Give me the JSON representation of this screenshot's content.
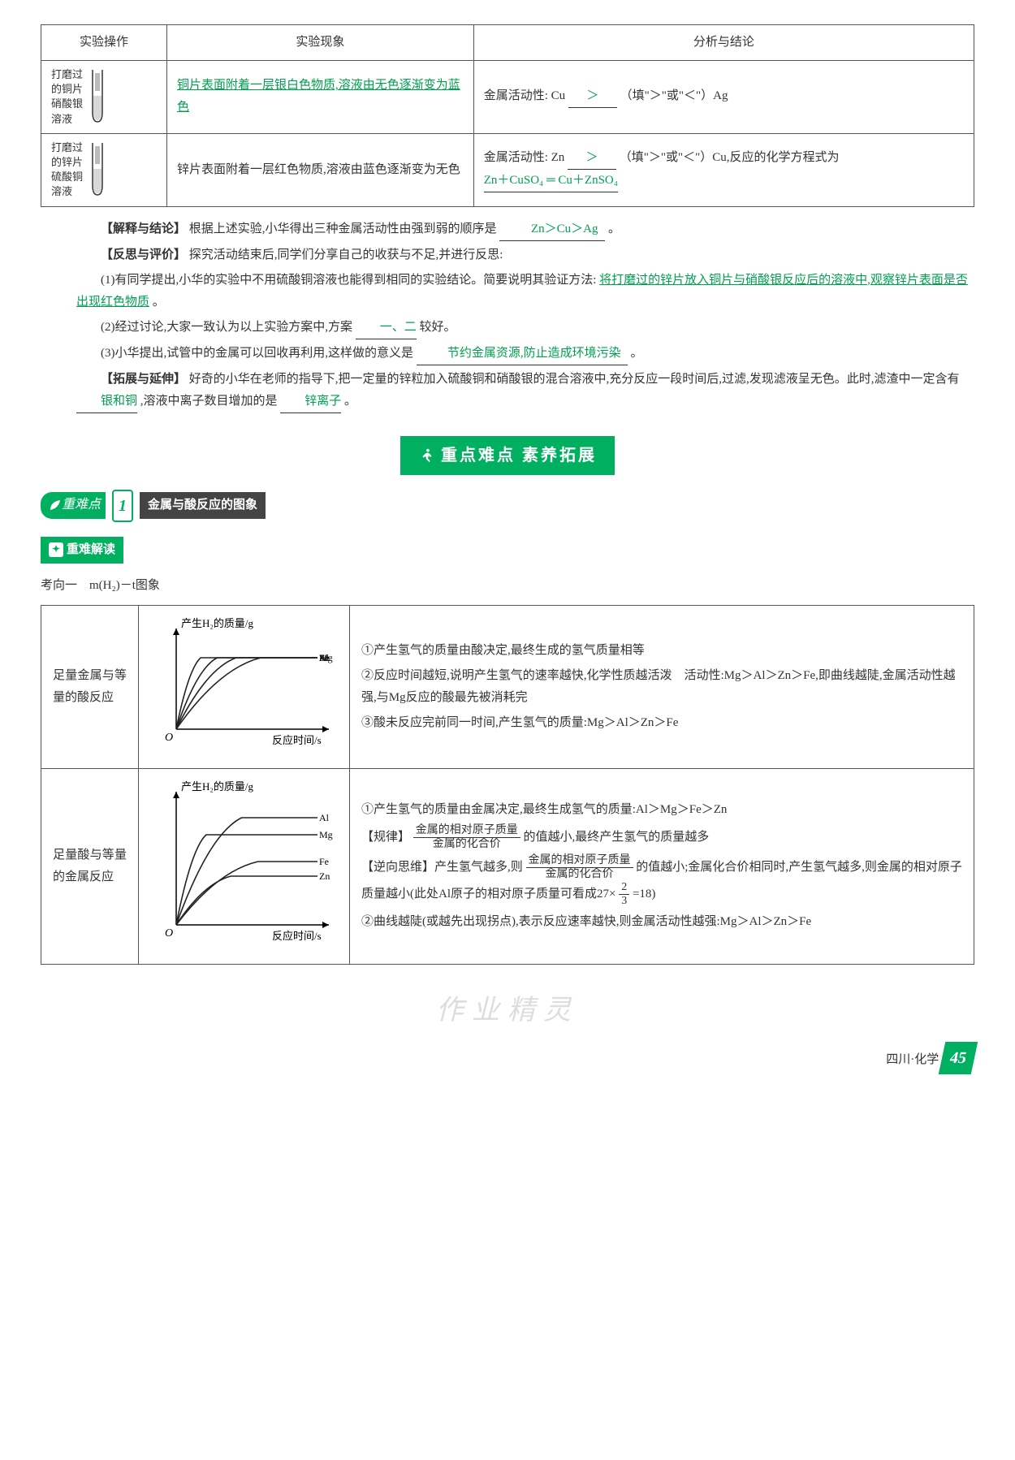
{
  "experiment_table": {
    "headers": [
      "实验操作",
      "实验现象",
      "分析与结论"
    ],
    "rows": [
      {
        "label_lines": [
          "打磨过",
          "的铜片",
          "硝酸银",
          "溶液"
        ],
        "phenomenon_answer": "铜片表面附着一层银白色物质,溶液由无色逐渐变为蓝色",
        "analysis_prefix": "金属活动性: Cu",
        "analysis_blank": "＞",
        "analysis_suffix": "（填\"＞\"或\"＜\"）Ag"
      },
      {
        "label_lines": [
          "打磨过",
          "的锌片",
          "硫酸铜",
          "溶液"
        ],
        "phenomenon": "锌片表面附着一层红色物质,溶液由蓝色逐渐变为无色",
        "analysis_prefix": "金属活动性: Zn",
        "analysis_blank": "＞",
        "analysis_mid": "（填\"＞\"或\"＜\"）Cu,反应的化学方程式为",
        "analysis_blank2": "Zn＋CuSO₄ ═ Cu＋ZnSO₄"
      }
    ]
  },
  "sections": {
    "explain_label": "【解释与结论】",
    "explain_text_pre": "根据上述实验,小华得出三种金属活动性由强到弱的顺序是",
    "explain_blank": "Zn＞Cu＞Ag",
    "explain_text_post": "。",
    "reflect_label": "【反思与评价】",
    "reflect_intro": "探究活动结束后,同学们分享自己的收获与不足,并进行反思:",
    "q1_pre": "(1)有同学提出,小华的实验中不用硫酸铜溶液也能得到相同的实验结论。简要说明其验证方法:",
    "q1_blank": "将打磨过的锌片放入铜片与硝酸银反应后的溶液中,观察锌片表面是否出现红色物质",
    "q1_post": "。",
    "q2_pre": "(2)经过讨论,大家一致认为以上实验方案中,方案",
    "q2_blank": "一、二",
    "q2_post": "较好。",
    "q3_pre": "(3)小华提出,试管中的金属可以回收再利用,这样做的意义是",
    "q3_blank": "节约金属资源,防止造成环境污染",
    "q3_post": "。",
    "extend_label": "【拓展与延伸】",
    "extend_text_a": "好奇的小华在老师的指导下,把一定量的锌粒加入硫酸铜和硝酸银的混合溶液中,充分反应一段时间后,过滤,发现滤液呈无色。此时,滤渣中一定含有",
    "extend_blank1": "银和铜",
    "extend_text_b": ",溶液中离子数目增加的是",
    "extend_blank2": "锌离子",
    "extend_text_c": "。"
  },
  "banner": {
    "text": "重点难点  素养拓展"
  },
  "topic": {
    "badge": "重难点",
    "num": "1",
    "title": "金属与酸反应的图象"
  },
  "sub_badge": "重难解读",
  "kdir": "考向一　m(H₂)－t图象",
  "graph_table": {
    "rows": [
      {
        "label": "足量金属与等量的酸反应",
        "chart": {
          "ylabel": "产生H₂的质量/g",
          "xlabel": "反应时间/s",
          "series": [
            "Mg",
            "Al",
            "Zn",
            "Fe"
          ],
          "plateau_y": [
            80,
            80,
            80,
            80
          ],
          "bend_x": [
            18,
            30,
            44,
            62
          ],
          "colors": [
            "#222",
            "#222",
            "#222",
            "#222"
          ]
        },
        "notes": [
          "①产生氢气的质量由酸决定,最终生成的氢气质量相等",
          "②反应时间越短,说明产生氢气的速率越快,化学性质越活泼　活动性:Mg＞Al＞Zn＞Fe,即曲线越陡,金属活动性越强,与Mg反应的酸最先被消耗完",
          "③酸未反应完前同一时间,产生氢气的质量:Mg＞Al＞Zn＞Fe"
        ]
      },
      {
        "label": "足量酸与等量的金属反应",
        "chart": {
          "ylabel": "产生H₂的质量/g",
          "xlabel": "反应时间/s",
          "series": [
            "Al",
            "Mg",
            "Fe",
            "Zn"
          ],
          "plateau_y": [
            88,
            74,
            52,
            40
          ],
          "bend_x": [
            48,
            22,
            60,
            40
          ],
          "colors": [
            "#222",
            "#222",
            "#222",
            "#222"
          ]
        },
        "notes_rich": true,
        "n1": "①产生氢气的质量由金属决定,最终生成氢气的质量:Al＞Mg＞Fe＞Zn",
        "n2a": "【规律】",
        "n2_frac_n": "金属的相对原子质量",
        "n2_frac_d": "金属的化合价",
        "n2b": "的值越小,最终产生氢气的质量越多",
        "n3a": "【逆向思维】产生氢气越多,则",
        "n3_frac_n": "金属的相对原子质量",
        "n3_frac_d": "金属的化合价",
        "n3b": "的值越小;金属化合价相同时,产生氢气越多,则金属的相对原子质量越小(此处Al原子的相对原子质量可看成27×",
        "n3_frac2_n": "2",
        "n3_frac2_d": "3",
        "n3c": "=18)",
        "n4": "②曲线越陡(或越先出现拐点),表示反应速率越快,则金属活动性越强:Mg＞Al＞Zn＞Fe"
      }
    ]
  },
  "watermark": "作业精灵",
  "footer": {
    "region": "四川·化学",
    "page": "45"
  }
}
